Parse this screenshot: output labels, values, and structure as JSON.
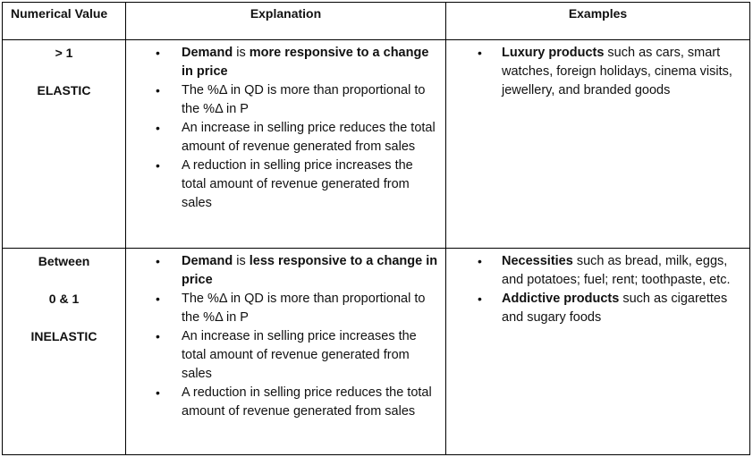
{
  "headers": {
    "numerical_value": "Numerical Value",
    "explanation": "Explanation",
    "examples": "Examples"
  },
  "rows": [
    {
      "value_lines": [
        "> 1",
        "ELASTIC"
      ],
      "explanation": [
        {
          "bold1": "Demand",
          "text1": " is ",
          "bold2": "more responsive to a change in price",
          "text2": ""
        },
        {
          "bold1": "",
          "text1": "The %Δ in QD is more than proportional to the %Δ in P",
          "bold2": "",
          "text2": ""
        },
        {
          "bold1": "",
          "text1": "An increase in selling price reduces the total amount of revenue generated from sales",
          "bold2": "",
          "text2": ""
        },
        {
          "bold1": "",
          "text1": "A reduction in selling price increases the total amount of revenue generated from sales",
          "bold2": "",
          "text2": ""
        }
      ],
      "examples": [
        {
          "bold": "Luxury products",
          "text": " such as cars, smart watches, foreign holidays, cinema visits, jewellery, and branded goods"
        }
      ]
    },
    {
      "value_lines": [
        "Between",
        "0 & 1",
        "INELASTIC"
      ],
      "explanation": [
        {
          "bold1": "Demand",
          "text1": " is ",
          "bold2": "less responsive to a change in price",
          "text2": ""
        },
        {
          "bold1": "",
          "text1": "The %Δ in QD is more than proportional to the %Δ in P",
          "bold2": "",
          "text2": ""
        },
        {
          "bold1": "",
          "text1": "An increase in selling price increases the total amount of revenue generated from sales",
          "bold2": "",
          "text2": ""
        },
        {
          "bold1": "",
          "text1": "A reduction in selling price reduces the total amount of revenue generated from sales",
          "bold2": "",
          "text2": ""
        }
      ],
      "examples": [
        {
          "bold": "Necessities",
          "text": " such as bread, milk, eggs, and potatoes; fuel; rent; toothpaste, etc."
        },
        {
          "bold": "Addictive products",
          "text": " such as cigarettes and sugary foods"
        }
      ]
    }
  ],
  "bullet_symbol": "•"
}
